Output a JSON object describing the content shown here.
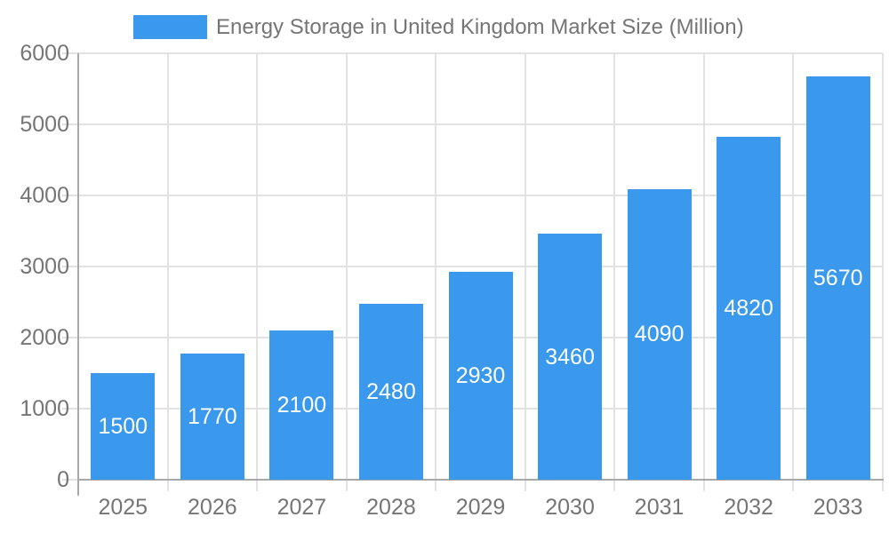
{
  "chart_data": {
    "type": "bar",
    "title": "Energy Storage in United Kingdom Market Size (Million)",
    "legend": {
      "label": "Energy Storage in United Kingdom Market Size (Million)",
      "position": "top"
    },
    "categories": [
      "2025",
      "2026",
      "2027",
      "2028",
      "2029",
      "2030",
      "2031",
      "2032",
      "2033"
    ],
    "values": [
      1500,
      1770,
      2100,
      2480,
      2930,
      3460,
      4090,
      4820,
      5670
    ],
    "bar_value_labels": [
      "1500",
      "1770",
      "2100",
      "2480",
      "2930",
      "3460",
      "4090",
      "4820",
      "5670"
    ],
    "xlabel": "",
    "ylabel": "",
    "ylim": [
      0,
      6000
    ],
    "ytick_step": 1000,
    "yticks": [
      0,
      1000,
      2000,
      3000,
      4000,
      5000,
      6000
    ],
    "grid": true,
    "bar_labels_inside": true,
    "colors": {
      "bar": "#3A99EC",
      "grid": "#E2E2E2",
      "axis": "#A8A8A8",
      "text": "#757575",
      "bar_label": "#FFFFFF",
      "background": "#FFFFFF"
    }
  }
}
